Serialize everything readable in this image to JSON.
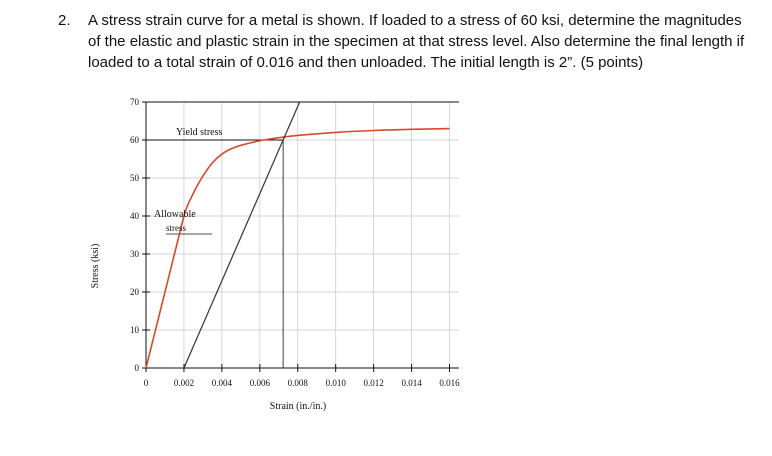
{
  "question": {
    "number": "2.",
    "text": "A stress strain curve for a metal is shown.  If loaded to a stress of 60 ksi, determine the magnitudes of the elastic and plastic strain in the specimen at that stress level.  Also determine the final length if loaded to a total strain of 0.016 and then unloaded.  The initial length is 2”. (5 points)"
  },
  "chart_data": {
    "type": "line",
    "xlabel": "Strain (in./in.)",
    "ylabel": "Stress (ksi)",
    "xlim": [
      0,
      0.0165
    ],
    "ylim": [
      0,
      70
    ],
    "x_ticks": [
      0,
      0.002,
      0.004,
      0.006,
      0.008,
      0.01,
      0.012,
      0.014,
      0.016
    ],
    "x_tick_labels": [
      "0",
      "0.002",
      "0.004",
      "0.006",
      "0.008",
      "0.010",
      "0.012",
      "0.014",
      "0.016"
    ],
    "y_ticks": [
      0,
      10,
      20,
      30,
      40,
      50,
      60,
      70
    ],
    "y_tick_labels": [
      "0",
      "10",
      "20",
      "30",
      "40",
      "50",
      "60",
      "70"
    ],
    "grid": true,
    "series": [
      {
        "color": "#d94a2a",
        "x": [
          0,
          0.002,
          0.0025,
          0.003,
          0.0035,
          0.004,
          0.0045,
          0.005,
          0.006,
          0.007,
          0.008,
          0.01,
          0.012,
          0.014,
          0.016
        ],
        "y": [
          0,
          40,
          46,
          50.5,
          54,
          56.3,
          57.7,
          58.6,
          59.8,
          60.6,
          61.2,
          62,
          62.5,
          62.8,
          63
        ]
      },
      {
        "color": "#333333",
        "x": [
          0.002,
          0.0081
        ],
        "y": [
          0,
          70
        ]
      }
    ],
    "annotations": [
      {
        "text": "Yield stress",
        "at_y": 60
      },
      {
        "text": "Allowable",
        "at_y": 40
      },
      {
        "text": "stress",
        "at_y": 40
      }
    ]
  }
}
